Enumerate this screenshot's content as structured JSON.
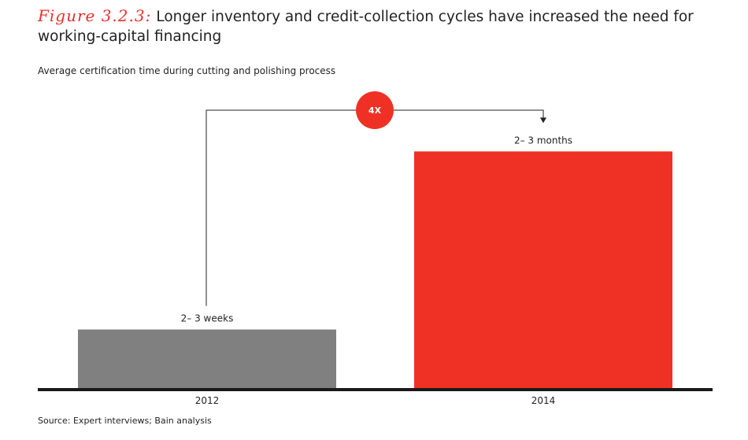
{
  "figure": {
    "label": "Figure 3.2.3:",
    "title": "Longer inventory and credit-collection cycles have increased the need for working-capital financing"
  },
  "subtitle": "Average certification time during cutting and polishing process",
  "source": "Source:  Expert interviews; Bain analysis",
  "colors": {
    "bar_2012": "#808080",
    "bar_2014": "#ef3125",
    "accent": "#ef3125",
    "baseline": "#1a1a1a"
  },
  "chart_data": {
    "type": "bar",
    "categories": [
      "2012",
      "2014"
    ],
    "values": [
      0.625,
      2.5
    ],
    "value_unit": "months (midpoints of stated ranges)",
    "data_labels": [
      "2– 3 weeks",
      "2– 3 months"
    ],
    "title": "Average certification time during cutting and polishing process",
    "xlabel": "",
    "ylabel": "",
    "ylim": [
      0,
      3.1
    ],
    "grid": false,
    "legend": "none",
    "annotation": {
      "text": "4X",
      "from": "2012",
      "to": "2014"
    }
  }
}
